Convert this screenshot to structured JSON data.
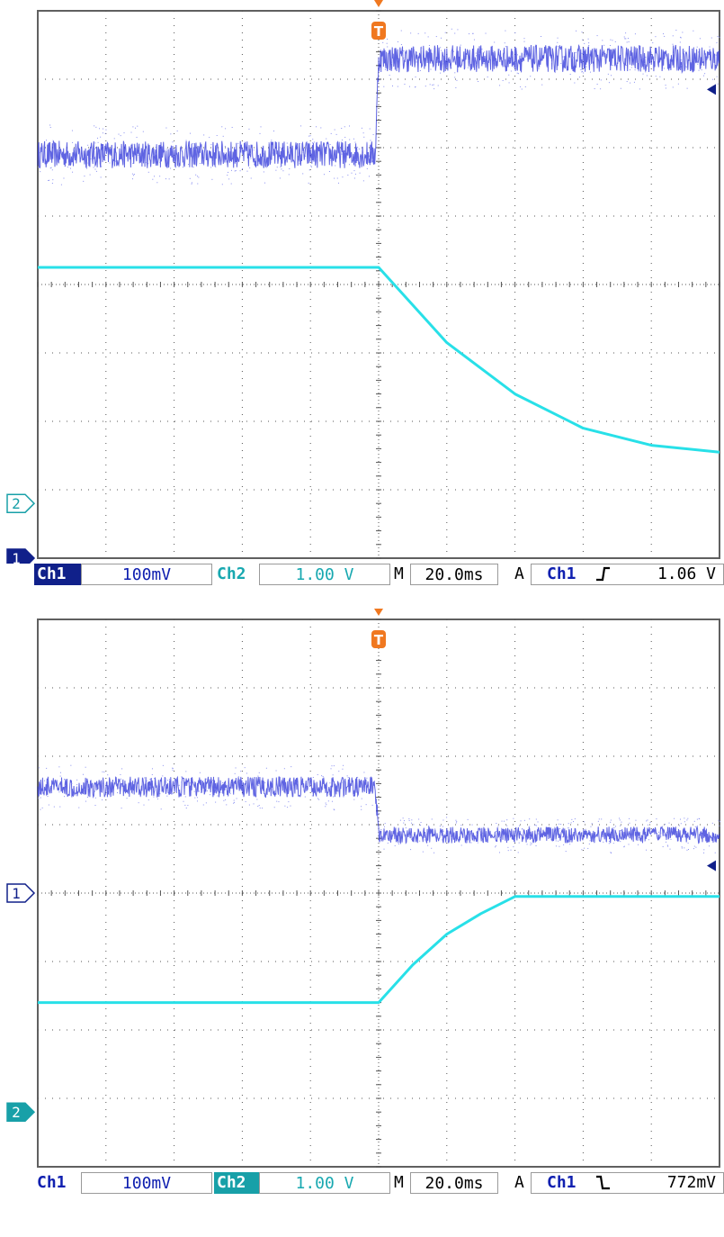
{
  "scopes": [
    {
      "id": "top",
      "active_channel": "Ch1",
      "status": {
        "ch1_label": "Ch1",
        "ch1_scale": "100mV",
        "ch2_label": "Ch2",
        "ch2_scale": "1.00 V",
        "timebase_prefix": "M",
        "timebase": "20.0ms",
        "trigger_prefix": "A",
        "trigger_source": "Ch1",
        "trigger_slope": "rising",
        "trigger_slope_glyph": "ʃ",
        "trigger_level": "1.06 V"
      },
      "markers": {
        "trigger": "T",
        "ch1": "1",
        "ch2": "2"
      }
    },
    {
      "id": "bottom",
      "active_channel": "Ch2",
      "status": {
        "ch1_label": "Ch1",
        "ch1_scale": "100mV",
        "ch2_label": "Ch2",
        "ch2_scale": "1.00 V",
        "timebase_prefix": "M",
        "timebase": "20.0ms",
        "trigger_prefix": "A",
        "trigger_source": "Ch1",
        "trigger_slope": "falling",
        "trigger_slope_glyph": "⸜",
        "trigger_level": "772mV"
      },
      "markers": {
        "trigger": "T",
        "ch1": "1",
        "ch2": "2"
      }
    }
  ],
  "colors": {
    "ch1": "#2a30d8",
    "ch1_light": "#8a90f0",
    "ch2": "#28e0e8",
    "trigger": "#f07820",
    "marker_dark": "#10208a",
    "grid": "#555555",
    "frame": "#606060"
  },
  "chart_data": [
    {
      "type": "line",
      "x_unit": "ms",
      "x_divisions": 10,
      "y_divisions": 8,
      "time_per_division_ms": 20,
      "trigger_time_ms": 0,
      "xlim": [
        -100,
        100
      ],
      "series": [
        {
          "name": "Ch1",
          "volts_per_division": 0.1,
          "ground_marker_division": -4,
          "points": [
            [
              -100,
              1.9
            ],
            [
              -1,
              1.9
            ],
            [
              0,
              3.3
            ],
            [
              100,
              3.3
            ]
          ],
          "noise_divisions_before": 0.2,
          "noise_divisions_after": 0.2
        },
        {
          "name": "Ch2",
          "volts_per_division": 1.0,
          "ground_marker_division": -3.2,
          "points": [
            [
              -100,
              0.25
            ],
            [
              0,
              0.25
            ],
            [
              20,
              -0.85
            ],
            [
              40,
              -1.6
            ],
            [
              60,
              -2.1
            ],
            [
              80,
              -2.35
            ],
            [
              100,
              -2.45
            ]
          ]
        }
      ]
    },
    {
      "type": "line",
      "x_unit": "ms",
      "x_divisions": 10,
      "y_divisions": 8,
      "time_per_division_ms": 20,
      "trigger_time_ms": 0,
      "xlim": [
        -100,
        100
      ],
      "series": [
        {
          "name": "Ch1",
          "volts_per_division": 0.1,
          "ground_marker_division": 0,
          "points": [
            [
              -100,
              1.55
            ],
            [
              -1,
              1.55
            ],
            [
              0,
              0.85
            ],
            [
              100,
              0.85
            ]
          ],
          "noise_divisions_before": 0.15,
          "noise_divisions_after": 0.12
        },
        {
          "name": "Ch2",
          "volts_per_division": 1.0,
          "ground_marker_division": -3.2,
          "points": [
            [
              -100,
              -1.6
            ],
            [
              0,
              -1.6
            ],
            [
              10,
              -1.05
            ],
            [
              20,
              -0.6
            ],
            [
              30,
              -0.3
            ],
            [
              40,
              -0.05
            ],
            [
              100,
              -0.05
            ]
          ]
        }
      ]
    }
  ]
}
